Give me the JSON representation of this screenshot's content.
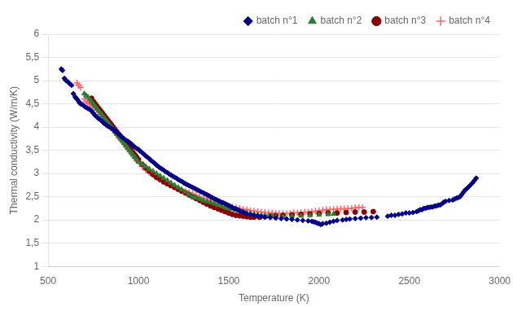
{
  "chart_data": {
    "type": "scatter",
    "xlabel": "Temperature (K)",
    "ylabel": "Thermal conductivity (W/m/K)",
    "xlim": [
      500,
      3000
    ],
    "ylim": [
      1,
      6
    ],
    "xticks": [
      500,
      1000,
      1500,
      2000,
      2500,
      3000
    ],
    "yticks": [
      1,
      {
        "value": 1.5,
        "label": "1,5"
      },
      2,
      {
        "value": 2.5,
        "label": "2,5"
      },
      3,
      {
        "value": 3.5,
        "label": "3,5"
      },
      4,
      {
        "value": 4.5,
        "label": "4,5"
      },
      5,
      {
        "value": 5.5,
        "label": "5,5"
      },
      6
    ],
    "grid": "y",
    "legend": "upper right",
    "series": [
      {
        "name": "batch n°1",
        "color": "#00008B",
        "marker": "diamond",
        "x": [
          573,
          580,
          590,
          595,
          600,
          610,
          620,
          630,
          640,
          650,
          655,
          660,
          670,
          675,
          680,
          690,
          700,
          710,
          720,
          730,
          740,
          750,
          760,
          770,
          780,
          790,
          800,
          810,
          820,
          830,
          840,
          850,
          860,
          870,
          880,
          890,
          900,
          910,
          920,
          930,
          940,
          950,
          960,
          970,
          980,
          990,
          1000,
          1010,
          1020,
          1030,
          1040,
          1050,
          1060,
          1070,
          1080,
          1090,
          1100,
          1110,
          1120,
          1130,
          1140,
          1150,
          1160,
          1170,
          1180,
          1190,
          1200,
          1210,
          1220,
          1230,
          1240,
          1250,
          1260,
          1270,
          1280,
          1290,
          1300,
          1310,
          1320,
          1330,
          1340,
          1350,
          1360,
          1370,
          1380,
          1390,
          1400,
          1410,
          1420,
          1430,
          1440,
          1450,
          1460,
          1470,
          1480,
          1490,
          1500,
          1510,
          1520,
          1530,
          1540,
          1550,
          1560,
          1570,
          1580,
          1590,
          1600,
          1620,
          1640,
          1660,
          1680,
          1700,
          1730,
          1760,
          1790,
          1820,
          1850,
          1880,
          1910,
          1940,
          1960,
          1970,
          1980,
          1990,
          2000,
          2010,
          2020,
          2040,
          2060,
          2080,
          2100,
          2130,
          2150,
          2170,
          2200,
          2230,
          2260,
          2290,
          2320,
          2380,
          2400,
          2420,
          2440,
          2460,
          2480,
          2500,
          2520,
          2540,
          2550,
          2560,
          2570,
          2580,
          2590,
          2600,
          2610,
          2620,
          2630,
          2640,
          2650,
          2660,
          2670,
          2680,
          2690,
          2700,
          2720,
          2740,
          2750,
          2760,
          2770,
          2780,
          2790,
          2800,
          2810,
          2820,
          2830,
          2840,
          2850,
          2860,
          2870
        ],
        "values": [
          5.25,
          5.22,
          5.05,
          5.02,
          5.0,
          4.97,
          4.93,
          4.9,
          4.72,
          4.65,
          4.62,
          4.6,
          4.55,
          4.52,
          4.5,
          4.48,
          4.45,
          4.42,
          4.4,
          4.38,
          4.35,
          4.3,
          4.25,
          4.22,
          4.18,
          4.15,
          4.12,
          4.08,
          4.05,
          4.02,
          4.0,
          3.97,
          3.95,
          3.92,
          3.88,
          3.85,
          3.82,
          3.78,
          3.75,
          3.72,
          3.7,
          3.67,
          3.64,
          3.6,
          3.57,
          3.54,
          3.52,
          3.48,
          3.45,
          3.42,
          3.38,
          3.35,
          3.32,
          3.28,
          3.25,
          3.22,
          3.18,
          3.15,
          3.12,
          3.1,
          3.07,
          3.04,
          3.02,
          2.99,
          2.97,
          2.94,
          2.92,
          2.9,
          2.87,
          2.85,
          2.83,
          2.8,
          2.78,
          2.76,
          2.74,
          2.72,
          2.7,
          2.68,
          2.66,
          2.64,
          2.62,
          2.6,
          2.58,
          2.56,
          2.54,
          2.52,
          2.5,
          2.48,
          2.46,
          2.44,
          2.42,
          2.4,
          2.38,
          2.37,
          2.35,
          2.33,
          2.31,
          2.29,
          2.27,
          2.25,
          2.24,
          2.22,
          2.2,
          2.18,
          2.17,
          2.15,
          2.13,
          2.12,
          2.1,
          2.09,
          2.07,
          2.06,
          2.05,
          2.04,
          2.03,
          2.02,
          2.01,
          2.0,
          1.99,
          1.98,
          1.97,
          1.96,
          1.95,
          1.93,
          1.92,
          1.9,
          1.92,
          1.93,
          1.95,
          1.97,
          1.99,
          2.0,
          2.01,
          2.02,
          2.03,
          2.04,
          2.05,
          2.05,
          2.06,
          2.08,
          2.1,
          2.1,
          2.12,
          2.13,
          2.15,
          2.15,
          2.16,
          2.18,
          2.2,
          2.22,
          2.22,
          2.25,
          2.25,
          2.27,
          2.27,
          2.28,
          2.28,
          2.3,
          2.3,
          2.32,
          2.32,
          2.35,
          2.38,
          2.4,
          2.42,
          2.43,
          2.45,
          2.47,
          2.48,
          2.5,
          2.55,
          2.6,
          2.65,
          2.68,
          2.72,
          2.76,
          2.8,
          2.85,
          2.9
        ]
      },
      {
        "name": "batch n°2",
        "color": "#2E7D32",
        "marker": "triangle",
        "x": [
          700,
          710,
          720,
          730,
          740,
          750,
          760,
          770,
          780,
          790,
          800,
          810,
          820,
          830,
          840,
          850,
          860,
          870,
          880,
          890,
          900,
          910,
          920,
          930,
          940,
          950,
          960,
          970,
          980,
          990,
          1000,
          1020,
          1040,
          1060,
          1080,
          1100,
          1120,
          1140,
          1160,
          1180,
          1200,
          1220,
          1240,
          1260,
          1280,
          1300,
          1320,
          1340,
          1360,
          1380,
          1400,
          1420,
          1440,
          1460,
          1480,
          1500,
          1520,
          1540,
          1560,
          1580,
          1600,
          1620,
          1640,
          1660,
          1680,
          1700,
          1720,
          1740,
          1760,
          1800,
          1850,
          1900,
          1950,
          2000,
          2050,
          2080
        ],
        "values": [
          4.72,
          4.68,
          4.65,
          4.6,
          4.55,
          4.5,
          4.45,
          4.4,
          4.35,
          4.3,
          4.25,
          4.2,
          4.15,
          4.1,
          4.05,
          4.0,
          3.95,
          3.9,
          3.85,
          3.8,
          3.75,
          3.7,
          3.65,
          3.6,
          3.55,
          3.5,
          3.45,
          3.4,
          3.35,
          3.3,
          3.25,
          3.2,
          3.15,
          3.1,
          3.05,
          3.0,
          2.95,
          2.9,
          2.85,
          2.8,
          2.75,
          2.7,
          2.65,
          2.6,
          2.55,
          2.5,
          2.48,
          2.45,
          2.42,
          2.4,
          2.38,
          2.35,
          2.32,
          2.3,
          2.27,
          2.25,
          2.23,
          2.21,
          2.19,
          2.17,
          2.15,
          2.14,
          2.12,
          2.11,
          2.1,
          2.09,
          2.08,
          2.08,
          2.07,
          2.07,
          2.08,
          2.09,
          2.1,
          2.11,
          2.12,
          2.13
        ]
      },
      {
        "name": "batch n°3",
        "color": "#8B0000",
        "marker": "circle",
        "x": [
          740,
          750,
          760,
          770,
          780,
          790,
          800,
          810,
          820,
          830,
          840,
          850,
          860,
          870,
          880,
          890,
          900,
          910,
          920,
          930,
          940,
          950,
          960,
          970,
          980,
          990,
          1000,
          1020,
          1040,
          1060,
          1080,
          1100,
          1120,
          1140,
          1160,
          1180,
          1200,
          1220,
          1240,
          1260,
          1280,
          1300,
          1320,
          1340,
          1360,
          1380,
          1400,
          1420,
          1440,
          1460,
          1480,
          1500,
          1520,
          1540,
          1560,
          1580,
          1600,
          1620,
          1640,
          1670,
          1700,
          1730,
          1760,
          1800,
          1850,
          1900,
          1950,
          2000,
          2050,
          2100,
          2150,
          2200,
          2250,
          2300
        ],
        "values": [
          4.62,
          4.55,
          4.5,
          4.45,
          4.4,
          4.35,
          4.3,
          4.25,
          4.2,
          4.15,
          4.1,
          4.05,
          4.0,
          3.95,
          3.9,
          3.85,
          3.8,
          3.75,
          3.7,
          3.65,
          3.6,
          3.55,
          3.5,
          3.45,
          3.4,
          3.35,
          3.3,
          3.2,
          3.12,
          3.05,
          2.98,
          2.92,
          2.87,
          2.82,
          2.78,
          2.74,
          2.7,
          2.66,
          2.62,
          2.58,
          2.54,
          2.5,
          2.46,
          2.42,
          2.38,
          2.34,
          2.3,
          2.27,
          2.24,
          2.21,
          2.18,
          2.15,
          2.12,
          2.1,
          2.09,
          2.08,
          2.07,
          2.06,
          2.06,
          2.06,
          2.07,
          2.08,
          2.09,
          2.1,
          2.11,
          2.12,
          2.13,
          2.14,
          2.15,
          2.15,
          2.16,
          2.17,
          2.17,
          2.18
        ]
      },
      {
        "name": "batch n°4",
        "color": "#FF6666",
        "marker": "plus",
        "x": [
          660,
          670,
          680,
          700,
          710,
          720,
          730,
          740,
          750,
          760,
          770,
          780,
          790,
          800,
          810,
          820,
          830,
          840,
          850,
          860,
          870,
          880,
          890,
          900,
          910,
          920,
          930,
          940,
          950,
          960,
          970,
          980,
          990,
          1000,
          1020,
          1040,
          1060,
          1080,
          1100,
          1120,
          1140,
          1160,
          1180,
          1200,
          1220,
          1240,
          1260,
          1280,
          1300,
          1320,
          1340,
          1360,
          1380,
          1400,
          1420,
          1440,
          1460,
          1480,
          1500,
          1520,
          1540,
          1560,
          1580,
          1600,
          1620,
          1640,
          1660,
          1680,
          1700,
          1720,
          1740,
          1760,
          1780,
          1800,
          1820,
          1840,
          1860,
          1880,
          1900,
          1920,
          1940,
          1960,
          1980,
          2000,
          2020,
          2040,
          2060,
          2080,
          2100,
          2120,
          2140,
          2160,
          2180,
          2200,
          2220,
          2240
        ],
        "values": [
          4.95,
          4.9,
          4.85,
          4.6,
          4.55,
          4.52,
          4.5,
          4.48,
          4.45,
          4.42,
          4.38,
          4.35,
          4.3,
          4.25,
          4.2,
          4.15,
          4.1,
          4.05,
          4.0,
          3.95,
          3.9,
          3.85,
          3.8,
          3.75,
          3.7,
          3.65,
          3.6,
          3.55,
          3.5,
          3.45,
          3.4,
          3.35,
          3.3,
          3.25,
          3.15,
          3.08,
          3.02,
          2.97,
          2.92,
          2.88,
          2.84,
          2.8,
          2.76,
          2.72,
          2.68,
          2.65,
          2.62,
          2.59,
          2.56,
          2.53,
          2.5,
          2.47,
          2.44,
          2.41,
          2.38,
          2.36,
          2.34,
          2.32,
          2.3,
          2.28,
          2.26,
          2.25,
          2.23,
          2.22,
          2.2,
          2.19,
          2.18,
          2.17,
          2.16,
          2.15,
          2.15,
          2.14,
          2.14,
          2.14,
          2.14,
          2.14,
          2.15,
          2.15,
          2.16,
          2.17,
          2.17,
          2.18,
          2.19,
          2.2,
          2.21,
          2.22,
          2.22,
          2.23,
          2.23,
          2.24,
          2.24,
          2.25,
          2.25,
          2.26,
          2.27,
          2.27
        ]
      }
    ]
  }
}
